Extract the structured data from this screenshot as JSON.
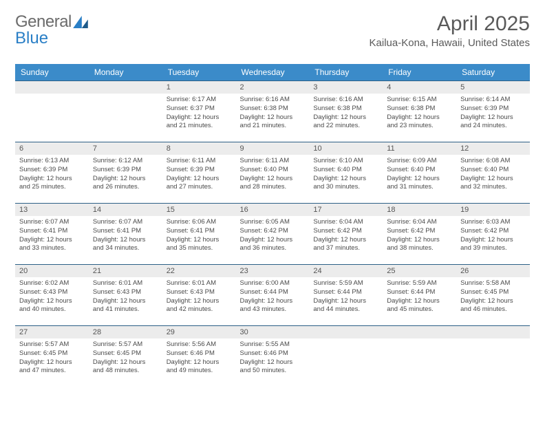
{
  "logo": {
    "word1": "General",
    "word2": "Blue"
  },
  "title": "April 2025",
  "location": "Kailua-Kona, Hawaii, United States",
  "day_headers": [
    "Sunday",
    "Monday",
    "Tuesday",
    "Wednesday",
    "Thursday",
    "Friday",
    "Saturday"
  ],
  "colors": {
    "header_bg": "#3b8bc9",
    "header_text": "#ffffff",
    "daynum_bg": "#ececec",
    "cell_border": "#2b5f86",
    "text": "#4a4a4a",
    "logo_gray": "#6b6b6b",
    "logo_blue": "#2a7fc6"
  },
  "typography": {
    "title_fontsize": 30,
    "location_fontsize": 15,
    "header_fontsize": 12,
    "daynum_fontsize": 11,
    "content_fontsize": 9.5
  },
  "layout": {
    "columns": 7,
    "rows": 5,
    "first_day_column": 2
  },
  "weeks": [
    [
      null,
      null,
      {
        "n": 1,
        "sr": "6:17 AM",
        "ss": "6:37 PM",
        "dl": "12 hours and 21 minutes."
      },
      {
        "n": 2,
        "sr": "6:16 AM",
        "ss": "6:38 PM",
        "dl": "12 hours and 21 minutes."
      },
      {
        "n": 3,
        "sr": "6:16 AM",
        "ss": "6:38 PM",
        "dl": "12 hours and 22 minutes."
      },
      {
        "n": 4,
        "sr": "6:15 AM",
        "ss": "6:38 PM",
        "dl": "12 hours and 23 minutes."
      },
      {
        "n": 5,
        "sr": "6:14 AM",
        "ss": "6:39 PM",
        "dl": "12 hours and 24 minutes."
      }
    ],
    [
      {
        "n": 6,
        "sr": "6:13 AM",
        "ss": "6:39 PM",
        "dl": "12 hours and 25 minutes."
      },
      {
        "n": 7,
        "sr": "6:12 AM",
        "ss": "6:39 PM",
        "dl": "12 hours and 26 minutes."
      },
      {
        "n": 8,
        "sr": "6:11 AM",
        "ss": "6:39 PM",
        "dl": "12 hours and 27 minutes."
      },
      {
        "n": 9,
        "sr": "6:11 AM",
        "ss": "6:40 PM",
        "dl": "12 hours and 28 minutes."
      },
      {
        "n": 10,
        "sr": "6:10 AM",
        "ss": "6:40 PM",
        "dl": "12 hours and 30 minutes."
      },
      {
        "n": 11,
        "sr": "6:09 AM",
        "ss": "6:40 PM",
        "dl": "12 hours and 31 minutes."
      },
      {
        "n": 12,
        "sr": "6:08 AM",
        "ss": "6:40 PM",
        "dl": "12 hours and 32 minutes."
      }
    ],
    [
      {
        "n": 13,
        "sr": "6:07 AM",
        "ss": "6:41 PM",
        "dl": "12 hours and 33 minutes."
      },
      {
        "n": 14,
        "sr": "6:07 AM",
        "ss": "6:41 PM",
        "dl": "12 hours and 34 minutes."
      },
      {
        "n": 15,
        "sr": "6:06 AM",
        "ss": "6:41 PM",
        "dl": "12 hours and 35 minutes."
      },
      {
        "n": 16,
        "sr": "6:05 AM",
        "ss": "6:42 PM",
        "dl": "12 hours and 36 minutes."
      },
      {
        "n": 17,
        "sr": "6:04 AM",
        "ss": "6:42 PM",
        "dl": "12 hours and 37 minutes."
      },
      {
        "n": 18,
        "sr": "6:04 AM",
        "ss": "6:42 PM",
        "dl": "12 hours and 38 minutes."
      },
      {
        "n": 19,
        "sr": "6:03 AM",
        "ss": "6:42 PM",
        "dl": "12 hours and 39 minutes."
      }
    ],
    [
      {
        "n": 20,
        "sr": "6:02 AM",
        "ss": "6:43 PM",
        "dl": "12 hours and 40 minutes."
      },
      {
        "n": 21,
        "sr": "6:01 AM",
        "ss": "6:43 PM",
        "dl": "12 hours and 41 minutes."
      },
      {
        "n": 22,
        "sr": "6:01 AM",
        "ss": "6:43 PM",
        "dl": "12 hours and 42 minutes."
      },
      {
        "n": 23,
        "sr": "6:00 AM",
        "ss": "6:44 PM",
        "dl": "12 hours and 43 minutes."
      },
      {
        "n": 24,
        "sr": "5:59 AM",
        "ss": "6:44 PM",
        "dl": "12 hours and 44 minutes."
      },
      {
        "n": 25,
        "sr": "5:59 AM",
        "ss": "6:44 PM",
        "dl": "12 hours and 45 minutes."
      },
      {
        "n": 26,
        "sr": "5:58 AM",
        "ss": "6:45 PM",
        "dl": "12 hours and 46 minutes."
      }
    ],
    [
      {
        "n": 27,
        "sr": "5:57 AM",
        "ss": "6:45 PM",
        "dl": "12 hours and 47 minutes."
      },
      {
        "n": 28,
        "sr": "5:57 AM",
        "ss": "6:45 PM",
        "dl": "12 hours and 48 minutes."
      },
      {
        "n": 29,
        "sr": "5:56 AM",
        "ss": "6:46 PM",
        "dl": "12 hours and 49 minutes."
      },
      {
        "n": 30,
        "sr": "5:55 AM",
        "ss": "6:46 PM",
        "dl": "12 hours and 50 minutes."
      },
      null,
      null,
      null
    ]
  ],
  "labels": {
    "sunrise": "Sunrise:",
    "sunset": "Sunset:",
    "daylight": "Daylight:"
  }
}
